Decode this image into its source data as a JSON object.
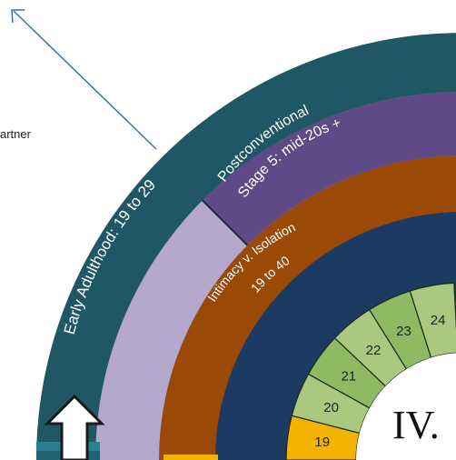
{
  "side_note": {
    "text": "artner"
  },
  "rings": {
    "outer": {
      "label": "Early Adulthood: 19 to 29",
      "color": "#1f5864"
    },
    "lavender": {
      "color": "#b4a8cd"
    },
    "postconventional": {
      "line1": "Postconventional",
      "line2": "Stage 5: mid-20s +",
      "color": "#5f4a85"
    },
    "intimacy": {
      "line1": "Intimacy v. Isolation",
      "line2": "19 to 40",
      "color": "#9a4907"
    },
    "navy": {
      "color": "#1c3b63"
    }
  },
  "ages": {
    "items": [
      "19",
      "20",
      "21",
      "22",
      "23",
      "24"
    ],
    "light_color": "#a9c97e",
    "dark_color": "#8fba63",
    "highlight_color": "#f5b301"
  },
  "center_numeral": "IV.",
  "colors": {
    "arrow": "#3e6db5",
    "stroke": "#ffffff"
  }
}
